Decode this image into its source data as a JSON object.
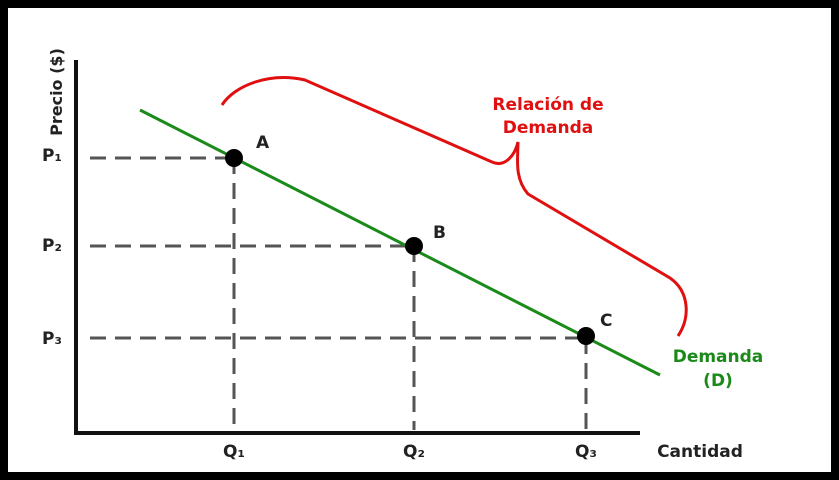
{
  "y_axis_label": "Precio ($)",
  "x_axis_label": "Cantidad",
  "prices": [
    "P₁",
    "P₂",
    "P₃"
  ],
  "quantities": [
    "Q₁",
    "Q₂",
    "Q₃"
  ],
  "points": [
    "A",
    "B",
    "C"
  ],
  "brace_label": [
    "Relación de",
    "Demanda"
  ],
  "curve_label": [
    "Demanda",
    "(D)"
  ]
}
